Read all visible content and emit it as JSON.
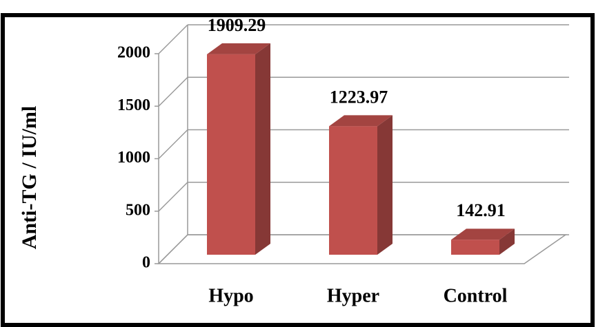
{
  "chart_data": {
    "type": "bar3d",
    "y_label": "Anti-TG / IU/ml",
    "categories": [
      "Hypo",
      "Hyper",
      "Control"
    ],
    "values": [
      1909.29,
      1223.97,
      142.91
    ],
    "color": "#c0504d",
    "ylim": [
      0,
      2000
    ],
    "yticks": [
      0,
      500,
      1000,
      1500,
      2000
    ],
    "grid": true
  }
}
